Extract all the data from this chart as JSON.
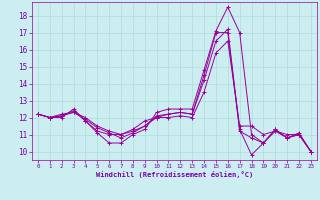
{
  "xlabel": "Windchill (Refroidissement éolien,°C)",
  "bg_color": "#cceef0",
  "line_color": "#990099",
  "grid_color": "#aadddd",
  "text_color": "#7700aa",
  "xlim": [
    -0.5,
    23.5
  ],
  "ylim": [
    9.5,
    18.8
  ],
  "yticks": [
    10,
    11,
    12,
    13,
    14,
    15,
    16,
    17,
    18
  ],
  "xticks": [
    0,
    1,
    2,
    3,
    4,
    5,
    6,
    7,
    8,
    9,
    10,
    11,
    12,
    13,
    14,
    15,
    16,
    17,
    18,
    19,
    20,
    21,
    22,
    23
  ],
  "series": [
    [
      12.2,
      12.0,
      12.0,
      12.5,
      11.8,
      11.1,
      10.5,
      10.5,
      11.0,
      11.3,
      12.3,
      12.5,
      12.5,
      12.5,
      14.8,
      17.1,
      18.5,
      17.0,
      11.0,
      10.5,
      11.3,
      10.8,
      11.1,
      10.0
    ],
    [
      12.2,
      12.0,
      12.1,
      12.4,
      11.8,
      11.2,
      11.0,
      11.0,
      11.2,
      11.5,
      12.0,
      12.2,
      12.3,
      12.2,
      14.5,
      17.0,
      17.0,
      11.2,
      10.8,
      10.5,
      11.2,
      10.8,
      11.0,
      10.0
    ],
    [
      12.2,
      12.0,
      12.2,
      12.3,
      12.0,
      11.5,
      11.2,
      11.0,
      11.3,
      11.8,
      12.0,
      12.0,
      12.1,
      12.0,
      13.5,
      15.8,
      16.5,
      11.5,
      11.5,
      11.0,
      11.2,
      11.0,
      11.0,
      10.0
    ],
    [
      12.2,
      12.0,
      12.1,
      12.3,
      11.9,
      11.4,
      11.1,
      10.8,
      11.1,
      11.5,
      12.1,
      12.2,
      12.3,
      12.2,
      14.2,
      16.5,
      17.2,
      11.3,
      9.8,
      10.5,
      11.3,
      10.8,
      11.0,
      10.0
    ]
  ]
}
